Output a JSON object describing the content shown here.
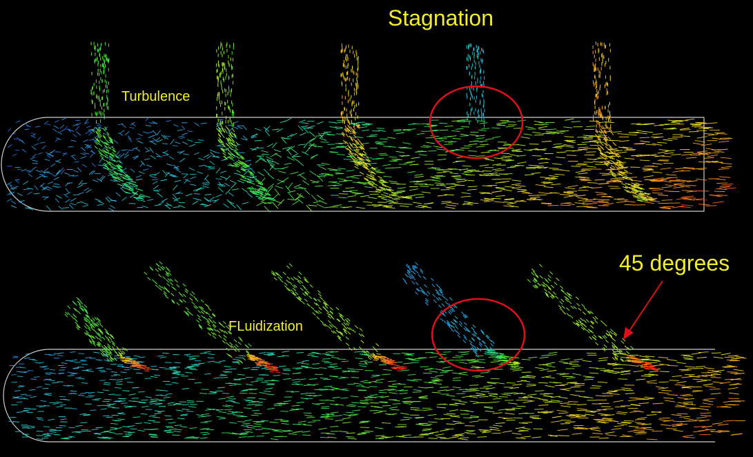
{
  "labels": {
    "title": "Stagnation",
    "turbulence": "Turbulence",
    "fluidization": "FLuidization",
    "angle": "45 degrees"
  },
  "colors": {
    "background": "#000000",
    "label_text": "#f2ef2a",
    "highlight_circle": "#e0101a",
    "pipe_outline": "#d8d8d8",
    "velocity_low": "#1e3cc8",
    "velocity_high": "#ff1a10"
  },
  "diagrams": [
    {
      "name": "perpendicular-branches",
      "branch_levels": [
        0.55,
        0.6,
        0.75,
        0.3,
        0.78
      ],
      "stagnation_branch": 4
    },
    {
      "name": "45-degree-branches",
      "branch_levels": [
        0.5,
        0.52,
        0.55,
        0.18,
        0.56
      ],
      "stagnation_branch": 4
    }
  ]
}
